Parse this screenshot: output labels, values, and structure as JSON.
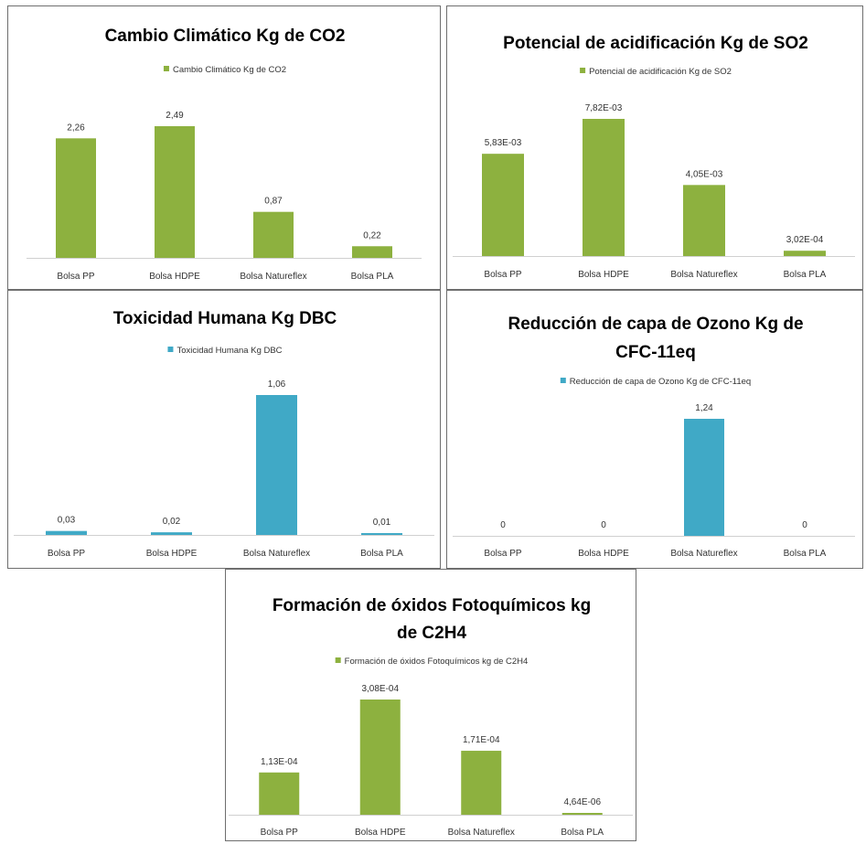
{
  "chart_data": [
    {
      "type": "bar",
      "title_lines": [
        "Cambio Climático Kg de CO2"
      ],
      "categories": [
        "Bolsa PP",
        "Bolsa HDPE",
        "Bolsa Natureflex",
        "Bolsa PLA"
      ],
      "series": [
        {
          "name": "Cambio Climático Kg de CO2",
          "values": [
            2.26,
            2.49,
            0.87,
            0.22
          ],
          "labels": [
            "2,26",
            "2,49",
            "0,87",
            "0,22"
          ]
        }
      ],
      "color": "#8db13f",
      "ylim": [
        0,
        2.49
      ]
    },
    {
      "type": "bar",
      "title_lines": [
        "Potencial de acidificación Kg de SO2"
      ],
      "categories": [
        "Bolsa PP",
        "Bolsa HDPE",
        "Bolsa Natureflex",
        "Bolsa PLA"
      ],
      "series": [
        {
          "name": "Potencial de acidificación Kg de SO2",
          "values": [
            0.00583,
            0.00782,
            0.00405,
            0.000302
          ],
          "labels": [
            "5,83E-03",
            "7,82E-03",
            "4,05E-03",
            "3,02E-04"
          ]
        }
      ],
      "color": "#8db13f",
      "ylim": [
        0,
        0.00782
      ]
    },
    {
      "type": "bar",
      "title_lines": [
        "Toxicidad Humana Kg DBC"
      ],
      "categories": [
        "Bolsa PP",
        "Bolsa HDPE",
        "Bolsa Natureflex",
        "Bolsa PLA"
      ],
      "series": [
        {
          "name": "Toxicidad Humana Kg DBC",
          "values": [
            0.03,
            0.02,
            1.06,
            0.01
          ],
          "labels": [
            "0,03",
            "0,02",
            "1,06",
            "0,01"
          ]
        }
      ],
      "color": "#40a9c6",
      "ylim": [
        0,
        1.06
      ]
    },
    {
      "type": "bar",
      "title_lines": [
        "Reducción de capa de Ozono Kg de",
        "CFC-11eq"
      ],
      "categories": [
        "Bolsa PP",
        "Bolsa HDPE",
        "Bolsa Natureflex",
        "Bolsa PLA"
      ],
      "series": [
        {
          "name": "Reducción de capa de Ozono Kg de CFC-11eq",
          "values": [
            0,
            0,
            1.24,
            0
          ],
          "labels": [
            "0",
            "0",
            "1,24",
            "0"
          ]
        }
      ],
      "color": "#40a9c6",
      "ylim": [
        0,
        1.24
      ]
    },
    {
      "type": "bar",
      "title_lines": [
        "Formación de óxidos Fotoquímicos kg",
        "de C2H4"
      ],
      "categories": [
        "Bolsa PP",
        "Bolsa HDPE",
        "Bolsa Natureflex",
        "Bolsa PLA"
      ],
      "series": [
        {
          "name": "Formación de óxidos Fotoquímicos kg de C2H4",
          "values": [
            0.000113,
            0.000308,
            0.000171,
            4.64e-06
          ],
          "labels": [
            "1,13E-04",
            "3,08E-04",
            "1,71E-04",
            "4,64E-06"
          ]
        }
      ],
      "color": "#8db13f",
      "ylim": [
        0,
        0.000308
      ]
    }
  ]
}
